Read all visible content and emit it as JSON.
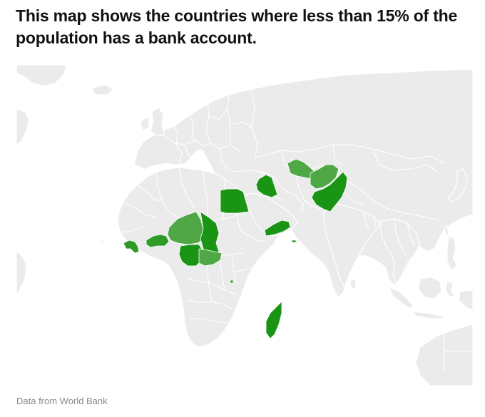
{
  "title": "This map shows the countries where less than 15% of the population has a bank account.",
  "caption": "Data from World Bank",
  "colors": {
    "background": "#ffffff",
    "land": "#ebebeb",
    "border": "#ffffff",
    "highlight_dark": "#1a9414",
    "highlight_mid": "#2f9a26",
    "highlight_light": "#4fa845",
    "title": "#111111",
    "caption": "#8a8a8a"
  },
  "highlighted_countries": [
    {
      "id": "guinea",
      "shade": "highlight_mid"
    },
    {
      "id": "burkina-faso",
      "shade": "highlight_mid"
    },
    {
      "id": "niger",
      "shade": "highlight_light"
    },
    {
      "id": "nigeria",
      "shade": "highlight_dark"
    },
    {
      "id": "chad",
      "shade": "highlight_dark"
    },
    {
      "id": "cameroon",
      "shade": "highlight_light"
    },
    {
      "id": "egypt",
      "shade": "highlight_dark"
    },
    {
      "id": "iraq",
      "shade": "highlight_dark"
    },
    {
      "id": "yemen",
      "shade": "highlight_dark"
    },
    {
      "id": "turkmenistan",
      "shade": "highlight_light"
    },
    {
      "id": "afghanistan",
      "shade": "highlight_light"
    },
    {
      "id": "pakistan",
      "shade": "highlight_dark"
    },
    {
      "id": "madagascar",
      "shade": "highlight_dark"
    },
    {
      "id": "burundi",
      "shade": "highlight_mid"
    }
  ]
}
